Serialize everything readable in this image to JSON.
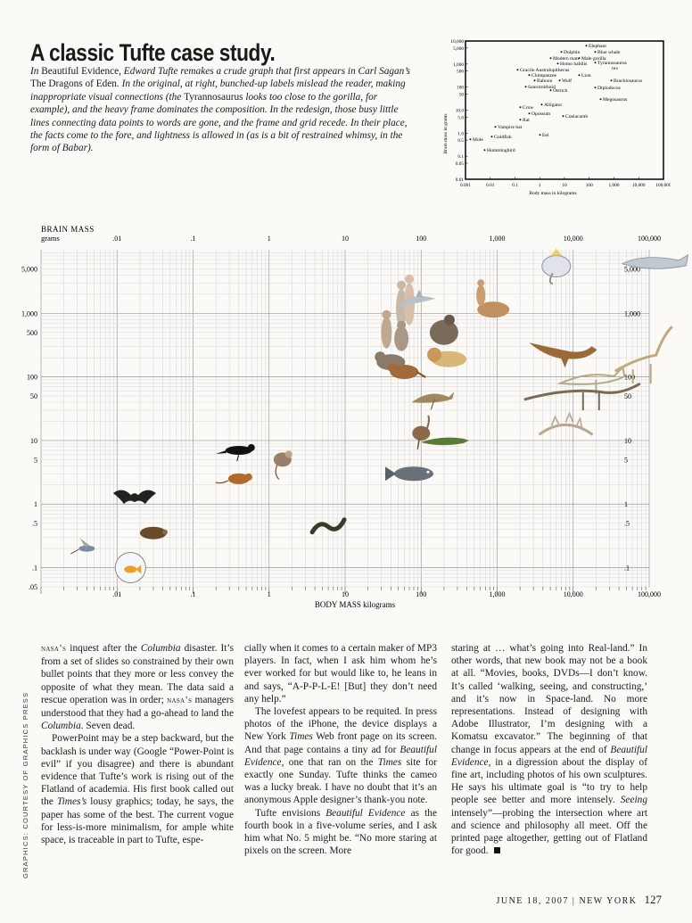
{
  "headline": "A classic Tufte case study.",
  "intro": {
    "p1": "In ",
    "book": "Beautiful Evidence",
    "p2": ", Edward Tufte remakes a crude graph that first appears in Carl Sagan’s ",
    "sagan_book": "The Dragons of Eden",
    "p3": ". In the original, at right, bunched-up labels mislead the reader, making inappropriate visual connections (the ",
    "trex": "Tyrannosaurus",
    "p4": " looks too close to the gorilla, for example), and the heavy frame dominates the composition. In the redesign, those busy little lines connecting data points to words are gone, and the frame and grid recede. In their place, the facts come to the fore, and lightness is allowed in (as is a bit of restrained whimsy, in the form of Babar)."
  },
  "original_graph": {
    "ylabel": "Brain mass in grams",
    "xlabel": "Body mass in kilograms",
    "yticks": [
      "10,000",
      "5,000",
      "1,000",
      "500",
      "100",
      "50",
      "10.0",
      "5.0",
      "1.0",
      "0.5",
      "0.1",
      "0.05",
      "0.01"
    ],
    "xticks": [
      "0.001",
      "0.01",
      "0.1",
      "1",
      "10",
      "100",
      "1,000",
      "10,000",
      "100,000"
    ],
    "labels": [
      "Elephant",
      "Dolphin",
      "Blue whale",
      "Modern man",
      "Male gorilla",
      "Homo habilis",
      "Tyrannosaurus",
      "Gracile Australopithecus",
      "rex",
      "Chimpanzee",
      "Lion",
      "Brachiosaurus",
      "Baboon",
      "Wolf",
      "Saurornithoid",
      "Ostrich",
      "Diplodocus",
      "Megosaurus",
      "Alligator",
      "Crow",
      "Opossum",
      "Coelacanth",
      "Rat",
      "Vampire bat",
      "Eel",
      "Mole",
      "Goldfish",
      "Hummingbird"
    ]
  },
  "chart_data": {
    "type": "scatter",
    "title": "",
    "ylabel": "BRAIN MASS",
    "yunit": "grams",
    "xlabel": "BODY MASS kilograms",
    "x_scale": "log",
    "y_scale": "log",
    "xlim": [
      0.001,
      100000
    ],
    "ylim": [
      0.05,
      10000
    ],
    "x_ticks": [
      ".01",
      ".1",
      "1",
      "10",
      "100",
      "1,000",
      "10,000",
      "100,000"
    ],
    "y_ticks_left": [
      "5,000",
      "1,000",
      "500",
      "100",
      "50",
      "10",
      "5",
      "1",
      ".5",
      ".1",
      ".05"
    ],
    "y_ticks_right": [
      "5,000",
      "1,000",
      "100",
      "50",
      "10",
      "5",
      "1",
      ".5",
      ".1"
    ],
    "grid": true,
    "points": [
      {
        "x": 0.004,
        "y": 0.2,
        "icon": "hummingbird"
      },
      {
        "x": 0.015,
        "y": 0.1,
        "icon": "goldfish"
      },
      {
        "x": 0.017,
        "y": 1.3,
        "icon": "bat"
      },
      {
        "x": 0.03,
        "y": 0.35,
        "icon": "mole"
      },
      {
        "x": 0.4,
        "y": 7,
        "icon": "crow"
      },
      {
        "x": 0.4,
        "y": 2.5,
        "icon": "rat"
      },
      {
        "x": 1.5,
        "y": 5,
        "icon": "opossum"
      },
      {
        "x": 6,
        "y": 0.5,
        "icon": "eel"
      },
      {
        "x": 80,
        "y": 3,
        "icon": "coelacanth"
      },
      {
        "x": 55,
        "y": 1200,
        "icon": "homo-habilis"
      },
      {
        "x": 70,
        "y": 1400,
        "icon": "modern-man"
      },
      {
        "x": 90,
        "y": 1600,
        "icon": "dolphin"
      },
      {
        "x": 35,
        "y": 500,
        "icon": "australopithecus"
      },
      {
        "x": 55,
        "y": 400,
        "icon": "chimpanzee"
      },
      {
        "x": 40,
        "y": 170,
        "icon": "baboon"
      },
      {
        "x": 60,
        "y": 120,
        "icon": "wolf"
      },
      {
        "x": 200,
        "y": 500,
        "icon": "gorilla"
      },
      {
        "x": 230,
        "y": 190,
        "icon": "lion"
      },
      {
        "x": 150,
        "y": 45,
        "icon": "saurornithoid"
      },
      {
        "x": 100,
        "y": 13,
        "icon": "ostrich"
      },
      {
        "x": 200,
        "y": 10,
        "icon": "alligator"
      },
      {
        "x": 800,
        "y": 1300,
        "icon": "centaur"
      },
      {
        "x": 6000,
        "y": 5500,
        "icon": "elephant-babar"
      },
      {
        "x": 110000,
        "y": 6000,
        "icon": "blue-whale"
      },
      {
        "x": 7000,
        "y": 250,
        "icon": "tyrannosaurus"
      },
      {
        "x": 20000,
        "y": 90,
        "icon": "megalosaurus"
      },
      {
        "x": 80000,
        "y": 170,
        "icon": "brachiosaurus"
      },
      {
        "x": 15000,
        "y": 50,
        "icon": "diplodocus"
      },
      {
        "x": 8000,
        "y": 15,
        "icon": "stegosaurus"
      }
    ]
  },
  "article": {
    "col1": [
      {
        "sc": "nasa’s",
        "t1": " inquest after the ",
        "it": "Columbia",
        "t2": " disaster. It’s from a set of slides so constrained by their own bullet points that they more or less convey the opposite of what they mean. The data said a rescue operation was in order; ",
        "sc2": "nasa’s",
        "t3": " managers understood that they had a go-ahead to land the ",
        "it2": "Columbia",
        "t4": ". Seven dead."
      },
      {
        "t1": "PowerPoint may be a step backward, but the backlash is under way (Google “Power-Point is evil” if you disagree) and there is abundant evidence that Tufte’s work is rising out of the Flatland of academia. His first book called out the ",
        "it": "Times’s",
        "t2": " lousy graphics; today, he says, the paper has some of the best. The current vogue for less-is-more minimalism, for ample white space, is traceable in part to Tufte, espe-"
      }
    ],
    "col2": [
      {
        "t1": "cially when it comes to a certain maker of MP3 players. In fact, when I ask him whom he’s ever worked for but would like to, he leans in and says, “A-P-P-L-E! [But] they don’t need any help.”"
      },
      {
        "t1": "The lovefest appears to be requited. In press photos of the iPhone, the device displays a New York ",
        "it": "Times",
        "t2": " Web front page on its screen. And that page contains a tiny ad for ",
        "it2": "Beautiful Evidence,",
        "t3": " one that ran on the ",
        "it3": "Times",
        "t4": " site for exactly one Sunday. Tufte thinks the cameo was a lucky break. I have no doubt that it’s an anonymous Apple designer’s thank-you note."
      },
      {
        "t1": "Tufte envisions ",
        "it": "Beautiful Evidence",
        "t2": " as the fourth book in a five-volume series, and I ask him what No. 5 might be. “No more staring at pixels on the screen. More"
      }
    ],
    "col3": [
      {
        "t1": "staring at … what’s going into Real-land.” In other words, that new book may not be a book at all. “Movies, books, DVDs—I don’t know. It’s called ‘walking, seeing, and constructing,’ and it’s now in Space-land. No more representations. Instead of designing with Adobe Illustrator, I’m designing with a Komatsu excavator.” The beginning of that change in focus appears at the end of ",
        "it": "Beautiful Evidence,",
        "t2": " in a digression about the display of fine art, including photos of his own sculptures. He says his ultimate goal is “to try to help people see better and more intensely. ",
        "it2": "Seeing",
        "t3": " intensely”—probing the intersection where art and science and philosophy all meet. Off the printed page altogether, getting out of Flatland for good."
      }
    ]
  },
  "side_credit": "GRAPHICS: COURTESY OF GRAPHICS PRESS",
  "footer": {
    "date": "JUNE 18, 2007",
    "sep": "|",
    "mag": "NEW YORK",
    "page": "127"
  }
}
